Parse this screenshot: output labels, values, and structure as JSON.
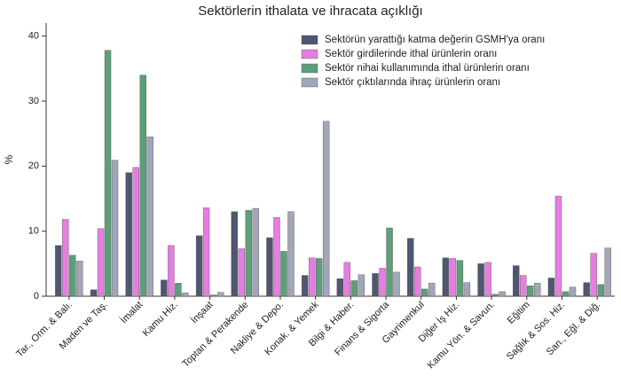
{
  "chart_data": {
    "type": "bar",
    "title": "Sektörlerin ithalata ve ihracata açıklığı",
    "ylabel": "%",
    "xlabel": "",
    "ylim": [
      0,
      42
    ],
    "yticks": [
      0,
      10,
      20,
      30,
      40
    ],
    "grid": false,
    "legend_position": "top-right",
    "categories": [
      "Tar., Orm. & Balı.",
      "Maden ve Taş.",
      "İmalat",
      "Kamu Hiz.",
      "İnşaat",
      "Toptan & Perakende",
      "Nakliye & Depo.",
      "Konak. & Yemek",
      "Bilgi & Haber.",
      "Finans & Sigorta",
      "Gayrimenkul",
      "Diğer İş Hiz.",
      "Kamu Yön. & Savun.",
      "Eğitim",
      "Sağlık & Sos. Hiz.",
      "San., Eğl. & Diğ."
    ],
    "series": [
      {
        "name": "Sektörün yarattığı katma değerin GSMH'ya oranı",
        "color": "#4f5670",
        "values": [
          7.8,
          1.0,
          19.0,
          2.5,
          9.3,
          13.0,
          9.0,
          3.2,
          2.7,
          3.5,
          8.9,
          5.9,
          5.0,
          4.7,
          2.8,
          2.1
        ]
      },
      {
        "name": "Sektör girdilerinde ithal ürünlerin oranı",
        "color": "#e67de0",
        "values": [
          11.8,
          10.4,
          19.8,
          7.8,
          13.6,
          7.3,
          12.1,
          5.9,
          5.2,
          4.3,
          4.5,
          5.8,
          5.2,
          3.2,
          15.4,
          6.6
        ]
      },
      {
        "name": "Sektör nihai kullanımında ithal ürünlerin oranı",
        "color": "#5e9e7a",
        "values": [
          6.3,
          37.8,
          34.0,
          2.0,
          0.2,
          13.2,
          6.9,
          5.8,
          2.4,
          10.5,
          1.1,
          5.5,
          0.3,
          1.6,
          0.7,
          1.8
        ]
      },
      {
        "name": "Sektör çıktılarında ihraç ürünlerin oranı",
        "color": "#a1a6b8",
        "values": [
          5.4,
          20.9,
          24.5,
          0.5,
          0.6,
          13.5,
          13.0,
          26.9,
          3.3,
          3.7,
          2.0,
          2.1,
          0.7,
          2.0,
          1.4,
          7.4
        ]
      }
    ]
  }
}
